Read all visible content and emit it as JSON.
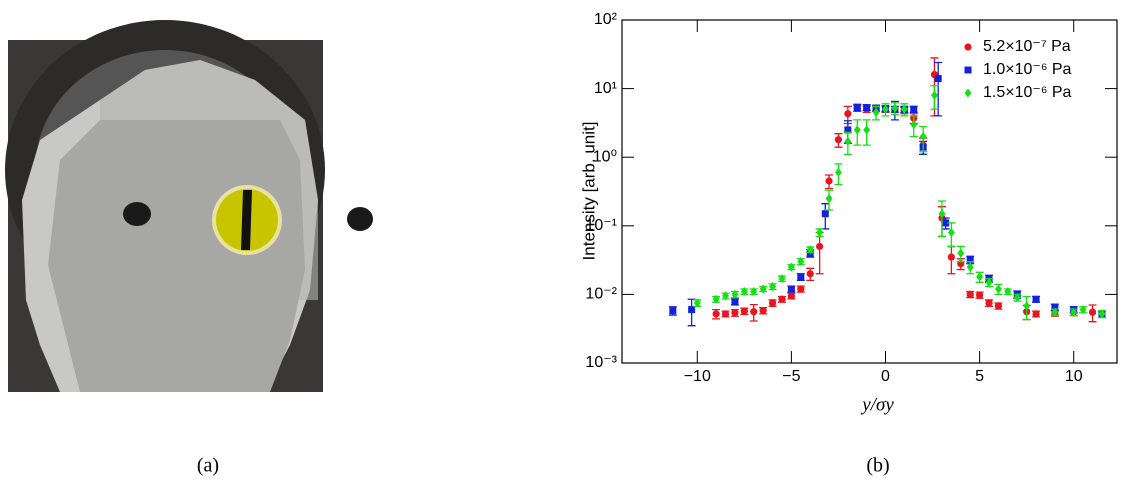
{
  "chart_data": {
    "type": "scatter",
    "xlabel": "y/σy",
    "ylabel": "Intensity [arb. unit]",
    "xlim": [
      -14,
      12.3
    ],
    "ylim": [
      0.001,
      100
    ],
    "log_y": true,
    "xticks": [
      {
        "value": -10,
        "label": "−10"
      },
      {
        "value": -5,
        "label": "−5"
      },
      0,
      5,
      10
    ],
    "yticks": [
      {
        "value": 0.001,
        "label": "10⁻³"
      },
      {
        "value": 0.01,
        "label": "10⁻²"
      },
      {
        "value": 0.1,
        "label": "10⁻¹"
      },
      {
        "value": 1,
        "label": "10⁰"
      },
      {
        "value": 10,
        "label": "10¹"
      },
      {
        "value": 100,
        "label": "10²"
      }
    ],
    "legend": "upper right",
    "series": [
      {
        "name": "5.2×10⁻⁷ Pa",
        "color": "#e8141e",
        "marker": "circle",
        "x": [
          -9,
          -8.5,
          -8,
          -7.5,
          -7,
          -6.5,
          -6,
          -5.5,
          -5,
          -4.5,
          -4,
          -3.5,
          -3,
          -2.5,
          -2,
          -1.5,
          -1,
          -0.5,
          0,
          0.5,
          1,
          1.5,
          2,
          2.6,
          3,
          3.5,
          4,
          4.5,
          5,
          5.5,
          6,
          7.5,
          8,
          9,
          10,
          11
        ],
        "values": [
          0.0052,
          0.0052,
          0.0054,
          0.0057,
          0.0056,
          0.0058,
          0.0075,
          0.0085,
          0.0095,
          0.012,
          0.02,
          0.05,
          0.45,
          1.8,
          4.3,
          5.2,
          5.0,
          5.2,
          5.0,
          5.0,
          4.8,
          3.7,
          1.5,
          16,
          0.13,
          0.035,
          0.028,
          0.01,
          0.0098,
          0.0075,
          0.0068,
          0.0056,
          0.0052,
          0.0053,
          0.0055,
          0.0055
        ],
        "errors": [
          0.0008,
          0.0005,
          0.0006,
          0.0006,
          0.0015,
          0.0006,
          0.0008,
          0.0008,
          0.0009,
          0.0012,
          0.004,
          0.03,
          0.1,
          0.4,
          1.2,
          0.5,
          0.5,
          0.5,
          0.5,
          0.5,
          0.5,
          0.6,
          0.4,
          12,
          0.06,
          0.015,
          0.005,
          0.001,
          0.001,
          0.0008,
          0.0007,
          0.0013,
          0.0005,
          0.0005,
          0.0006,
          0.0015
        ]
      },
      {
        "name": "1.0×10⁻⁶ Pa",
        "color": "#1420e0",
        "marker": "square",
        "x": [
          -11.3,
          -10.3,
          -8,
          -5,
          -4.5,
          -4,
          -3.2,
          -2,
          -1.5,
          -1,
          -0.5,
          0,
          0.5,
          1,
          1.5,
          2,
          2.8,
          3.2,
          4.5,
          5.5,
          7,
          8,
          9,
          10,
          11.5
        ],
        "values": [
          0.0058,
          0.006,
          0.0078,
          0.012,
          0.018,
          0.04,
          0.15,
          2.5,
          5.3,
          5.3,
          5.2,
          5.1,
          5.0,
          5.0,
          5.0,
          1.4,
          14,
          0.11,
          0.032,
          0.017,
          0.01,
          0.0085,
          0.0065,
          0.006,
          0.0052
        ],
        "errors": [
          0.0008,
          0.0025,
          0.0008,
          0.0012,
          0.002,
          0.005,
          0.06,
          0.9,
          0.6,
          0.5,
          0.5,
          0.5,
          1.5,
          0.5,
          0.5,
          0.3,
          10,
          0.02,
          0.004,
          0.002,
          0.0012,
          0.0008,
          0.0007,
          0.0006,
          0.0006
        ]
      },
      {
        "name": "1.5×10⁻⁶ Pa",
        "color": "#14e014",
        "marker": "diamond",
        "x": [
          -10,
          -9,
          -8.5,
          -8,
          -7.5,
          -7,
          -6.5,
          -6,
          -5.5,
          -5,
          -4.5,
          -4,
          -3.5,
          -3,
          -2.5,
          -2,
          -1.5,
          -1,
          -0.5,
          0,
          0.5,
          1,
          1.5,
          2,
          2.6,
          3,
          3.5,
          4,
          4.5,
          5,
          5.5,
          6,
          6.5,
          7,
          7.5,
          9,
          10,
          10.5,
          11.5
        ],
        "values": [
          0.0075,
          0.0085,
          0.0095,
          0.01,
          0.011,
          0.011,
          0.012,
          0.013,
          0.017,
          0.025,
          0.03,
          0.045,
          0.08,
          0.25,
          0.6,
          1.7,
          2.5,
          2.5,
          4.5,
          5,
          5.2,
          5,
          3,
          2,
          8,
          0.15,
          0.08,
          0.04,
          0.025,
          0.018,
          0.015,
          0.012,
          0.011,
          0.009,
          0.0068,
          0.0055,
          0.0055,
          0.006,
          0.0052
        ],
        "errors": [
          0.0008,
          0.0008,
          0.0009,
          0.001,
          0.001,
          0.001,
          0.001,
          0.0012,
          0.0015,
          0.002,
          0.003,
          0.004,
          0.01,
          0.08,
          0.2,
          0.6,
          1.0,
          1.0,
          1.0,
          1.0,
          1.0,
          1.0,
          1.0,
          0.8,
          3,
          0.08,
          0.03,
          0.01,
          0.005,
          0.003,
          0.002,
          0.002,
          0.001,
          0.001,
          0.0025,
          0.0006,
          0.0006,
          0.0006,
          0.0006
        ]
      }
    ]
  },
  "captions": [
    "(a)",
    "(b)"
  ]
}
